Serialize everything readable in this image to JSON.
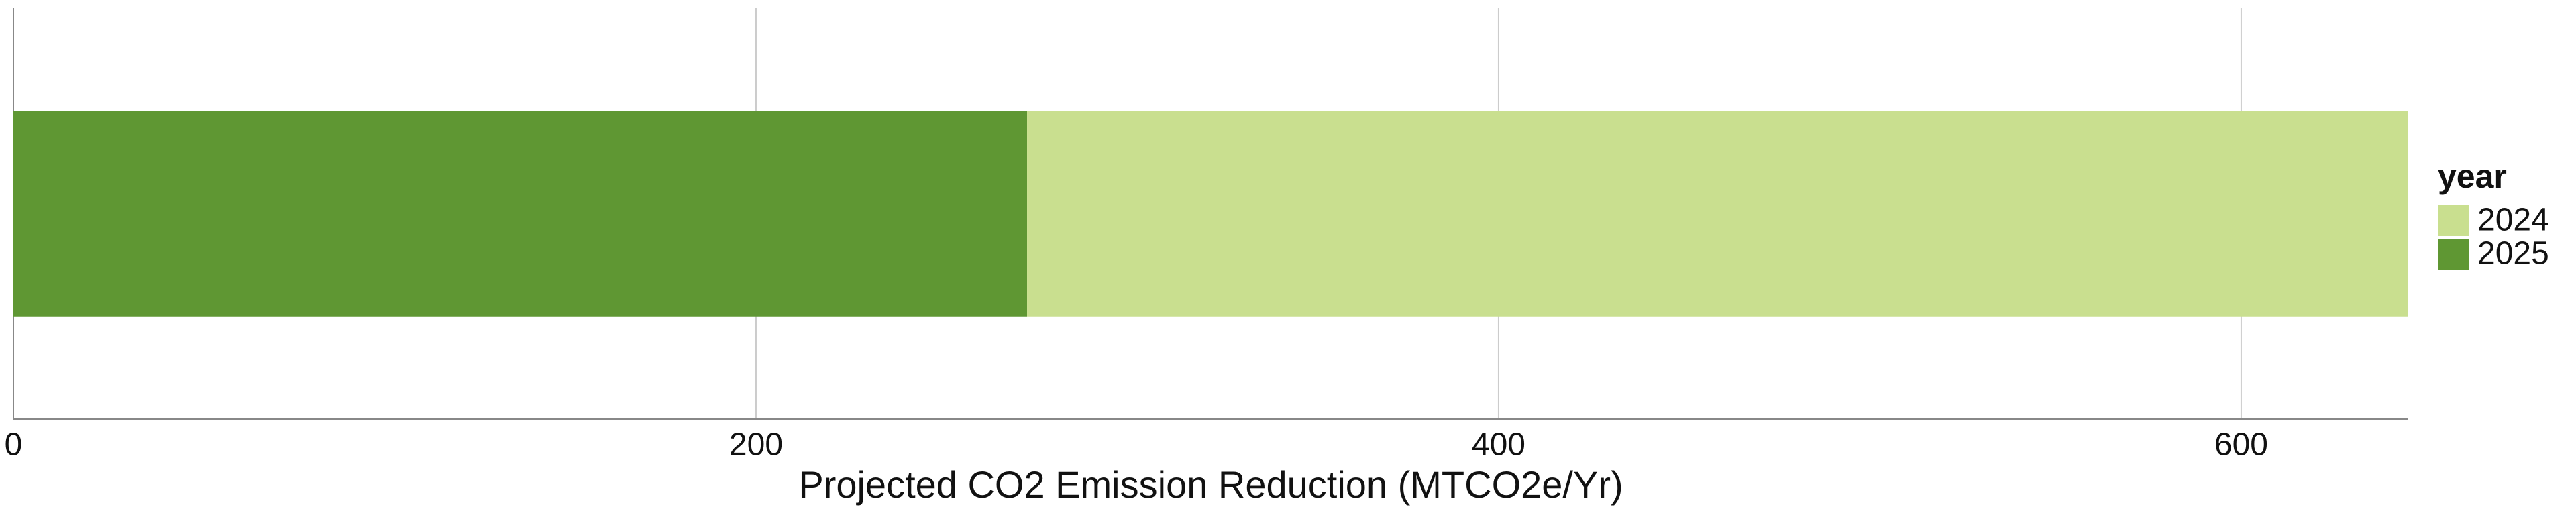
{
  "chart_data": {
    "type": "stacked-barh",
    "x_label": "Projected CO2 Emission Reduction (MTCO2e/Yr)",
    "categories": [
      null
    ],
    "series": [
      {
        "name": "2024",
        "color": "#c9df8f",
        "values": [
          372
        ]
      },
      {
        "name": "2025",
        "color": "#5f9733",
        "values": [
          273
        ]
      }
    ],
    "xlim": [
      0,
      645
    ],
    "xticks": [
      0,
      200,
      400,
      600
    ],
    "grid": true,
    "legend_title": "year",
    "legend": "right"
  }
}
